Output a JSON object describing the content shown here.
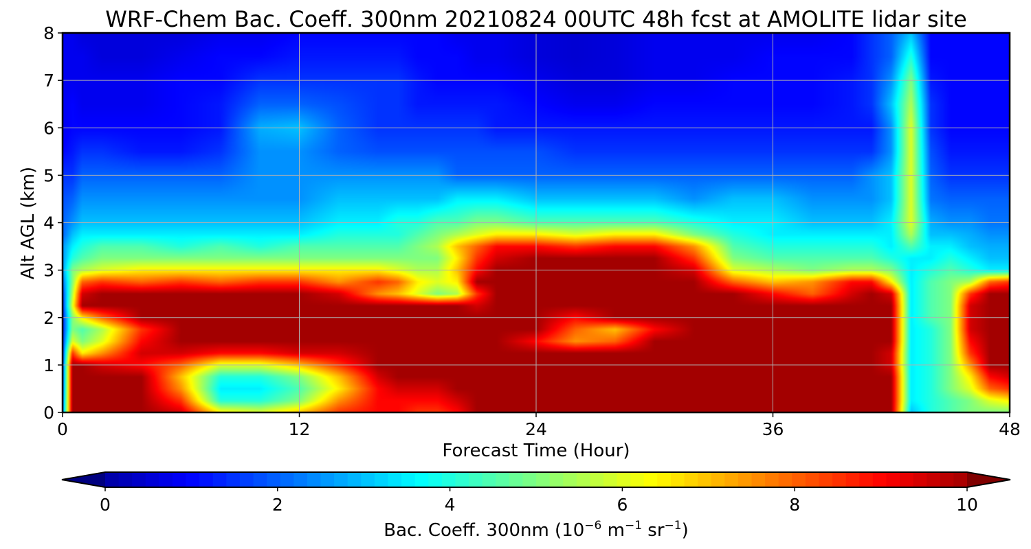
{
  "chart_data": {
    "type": "heatmap",
    "title": "WRF-Chem Bac. Coeff. 300nm  20210824 00UTC 48h fcst at AMOLITE lidar site",
    "xlabel": "Forecast Time (Hour)",
    "ylabel": "Alt AGL (km)",
    "xlim": [
      0,
      48
    ],
    "ylim": [
      0,
      8
    ],
    "x_ticks": [
      "0",
      "12",
      "24",
      "36",
      "48"
    ],
    "y_ticks": [
      "0",
      "1",
      "2",
      "3",
      "4",
      "5",
      "6",
      "7",
      "8"
    ],
    "grid": true,
    "colormap": "jet",
    "colorbar": {
      "orientation": "horizontal",
      "label_prefix": "Bac. Coeff. 300nm  (10",
      "label_exp1": "−6",
      "label_mid": " m",
      "label_exp2": "−1",
      "label_mid2": " sr",
      "label_exp3": "−1",
      "label_suffix": ")",
      "ticks": [
        "0",
        "2",
        "4",
        "6",
        "8",
        "10"
      ],
      "range": [
        0,
        10
      ],
      "extend": "both"
    },
    "x": [
      0,
      0.5,
      1,
      2,
      4,
      6,
      8,
      10,
      12,
      14,
      16,
      17,
      18,
      19,
      20,
      21,
      22,
      24,
      26,
      28,
      30,
      32,
      34,
      36,
      38,
      40,
      41,
      42,
      43,
      44,
      45,
      46,
      47,
      48
    ],
    "y": [
      0,
      0.25,
      0.5,
      0.75,
      1,
      1.25,
      1.5,
      1.75,
      2,
      2.25,
      2.5,
      2.75,
      3,
      3.25,
      3.5,
      3.75,
      4,
      4.5,
      5,
      5.5,
      6,
      6.5,
      7,
      7.5,
      8
    ],
    "values": [
      [
        2.0,
        10,
        10,
        10,
        10,
        9.5,
        6.5,
        6.0,
        7.0,
        8.5,
        9.0,
        9.0,
        8.5,
        8.5,
        9.0,
        10,
        10,
        10,
        10,
        10,
        10,
        10,
        10,
        10,
        10,
        10,
        10,
        10,
        3.0,
        4.0,
        4.5,
        5.0,
        5.0,
        5.0
      ],
      [
        1.8,
        10,
        10,
        10,
        10,
        8.5,
        4.0,
        4.0,
        5.0,
        7.5,
        9.0,
        9.0,
        9.0,
        9.0,
        9.5,
        10,
        10,
        10,
        10,
        10,
        10,
        10,
        10,
        10,
        10,
        10,
        10,
        10,
        3.5,
        4.0,
        4.5,
        5.0,
        6.0,
        6.5
      ],
      [
        1.6,
        10,
        10,
        10,
        10,
        7.5,
        3.5,
        3.5,
        4.5,
        6.5,
        9.0,
        9.5,
        9.5,
        9.5,
        10,
        10,
        10,
        10,
        10,
        10,
        10,
        10,
        10,
        10,
        10,
        10,
        10,
        10,
        3.5,
        4.0,
        5.0,
        6.0,
        8.0,
        8.5
      ],
      [
        1.5,
        10,
        10,
        10,
        10,
        7.0,
        4.0,
        4.0,
        5.0,
        7.0,
        9.5,
        10,
        10,
        10,
        10,
        10,
        10,
        10,
        10,
        10,
        10,
        10,
        10,
        10,
        10,
        10,
        10,
        10,
        3.5,
        4.0,
        5.0,
        6.5,
        9.0,
        9.5
      ],
      [
        1.4,
        10,
        10,
        9.5,
        9.0,
        8.0,
        6.0,
        6.0,
        7.0,
        8.5,
        10,
        10,
        10,
        10,
        10,
        10,
        10,
        10,
        10,
        10,
        10,
        10,
        10,
        10,
        10,
        10,
        10,
        9.5,
        3.5,
        4.0,
        5.0,
        7.5,
        10,
        10
      ],
      [
        1.3,
        8.5,
        6.5,
        7.5,
        9.5,
        9.5,
        9.0,
        9.0,
        9.5,
        9.5,
        10,
        10,
        10,
        10,
        10,
        10,
        10,
        10,
        10,
        10,
        10,
        10,
        10,
        10,
        10,
        10,
        10,
        9.5,
        3.5,
        4.0,
        5.0,
        8.5,
        10,
        10
      ],
      [
        1.3,
        6.0,
        5.0,
        6.0,
        9.0,
        10,
        10,
        10,
        10,
        10,
        10,
        10,
        10,
        10,
        10,
        10,
        10,
        9.0,
        7.5,
        8.0,
        10,
        10,
        10,
        10,
        10,
        10,
        10,
        10,
        3.5,
        4.0,
        5.0,
        9.0,
        10,
        10
      ],
      [
        1.2,
        5.0,
        4.5,
        5.5,
        8.5,
        10,
        10,
        10,
        10,
        10,
        10,
        10,
        10,
        10,
        10,
        10,
        10,
        10,
        8.0,
        7.0,
        9.0,
        10,
        10,
        10,
        10,
        10,
        10,
        10,
        3.5,
        4.0,
        5.0,
        9.5,
        10,
        10
      ],
      [
        1.2,
        5.0,
        6.5,
        8.0,
        10,
        10,
        10,
        10,
        10,
        10,
        10,
        10,
        10,
        10,
        10,
        10,
        10,
        10,
        9.0,
        10,
        10,
        10,
        10,
        10,
        10,
        10,
        10,
        10,
        3.5,
        4.5,
        5.0,
        9.5,
        10,
        10
      ],
      [
        1.3,
        6.0,
        10,
        10,
        10,
        10,
        10,
        10,
        10,
        10,
        10,
        10,
        10,
        10,
        10,
        9.5,
        10,
        10,
        10,
        10,
        10,
        10,
        10,
        10,
        10,
        10,
        10,
        10,
        3.5,
        4.5,
        5.0,
        9.5,
        10,
        10
      ],
      [
        1.5,
        5.5,
        9.5,
        10,
        10,
        10,
        10,
        10,
        10,
        9.5,
        7.5,
        7.0,
        6.0,
        5.0,
        5.5,
        8.5,
        10,
        10,
        10,
        10,
        10,
        10,
        10,
        9.0,
        8.0,
        9.5,
        10,
        9.5,
        3.5,
        4.5,
        5.0,
        8.5,
        10,
        10
      ],
      [
        2.0,
        5.0,
        8.0,
        8.5,
        8.0,
        8.5,
        8.0,
        8.5,
        8.5,
        7.5,
        8.5,
        8.0,
        6.5,
        6.0,
        6.5,
        10,
        10,
        10,
        10,
        10,
        10,
        10,
        8.0,
        7.0,
        7.5,
        9.0,
        9.0,
        6.5,
        3.5,
        4.5,
        5.0,
        5.5,
        8.0,
        8.5
      ],
      [
        2.5,
        5.0,
        5.5,
        6.0,
        6.5,
        6.5,
        6.5,
        6.5,
        6.5,
        6.5,
        6.5,
        6.0,
        5.5,
        5.5,
        7.0,
        9.0,
        10,
        10,
        10,
        10,
        10,
        9.5,
        6.0,
        5.5,
        5.0,
        5.5,
        5.5,
        5.0,
        3.5,
        4.0,
        4.5,
        4.0,
        3.5,
        3.5
      ],
      [
        2.5,
        4.0,
        4.5,
        5.0,
        5.0,
        5.0,
        5.0,
        5.0,
        5.0,
        5.0,
        5.0,
        5.0,
        5.0,
        5.0,
        6.5,
        8.5,
        9.5,
        10,
        10,
        10,
        10,
        8.5,
        5.0,
        4.5,
        4.5,
        4.5,
        4.5,
        4.0,
        3.5,
        3.5,
        4.0,
        3.5,
        3.0,
        3.0
      ],
      [
        2.5,
        3.5,
        4.0,
        4.5,
        4.5,
        4.0,
        4.5,
        4.0,
        4.5,
        4.5,
        4.5,
        4.5,
        5.0,
        5.5,
        7.0,
        8.0,
        9.0,
        9.0,
        8.5,
        9.0,
        9.0,
        7.5,
        4.5,
        4.0,
        4.0,
        4.0,
        4.0,
        3.5,
        4.5,
        3.5,
        3.5,
        3.0,
        2.8,
        2.8
      ],
      [
        2.0,
        3.0,
        3.5,
        3.5,
        3.5,
        3.5,
        3.5,
        3.5,
        3.5,
        4.0,
        4.0,
        4.0,
        4.5,
        5.0,
        5.5,
        6.0,
        6.5,
        6.5,
        6.0,
        6.5,
        6.5,
        5.0,
        4.0,
        3.5,
        3.5,
        3.5,
        3.5,
        3.5,
        5.5,
        3.0,
        3.0,
        2.8,
        2.5,
        2.5
      ],
      [
        2.0,
        2.5,
        3.0,
        3.0,
        3.0,
        3.0,
        3.0,
        3.0,
        3.0,
        3.5,
        3.5,
        4.0,
        4.0,
        4.5,
        4.5,
        5.0,
        5.0,
        4.5,
        4.5,
        4.5,
        4.5,
        4.0,
        3.5,
        3.5,
        3.0,
        3.0,
        3.0,
        3.5,
        6.0,
        2.8,
        2.5,
        2.5,
        2.2,
        2.2
      ],
      [
        1.8,
        2.0,
        2.5,
        2.5,
        2.5,
        2.5,
        2.5,
        2.5,
        2.5,
        3.0,
        3.0,
        3.0,
        3.0,
        3.0,
        3.5,
        3.5,
        3.5,
        3.0,
        3.0,
        3.0,
        3.0,
        2.5,
        3.0,
        3.0,
        2.5,
        2.5,
        2.5,
        3.0,
        6.0,
        2.2,
        2.0,
        2.0,
        2.0,
        2.0
      ],
      [
        1.5,
        1.5,
        2.0,
        2.0,
        2.0,
        2.0,
        2.0,
        2.5,
        2.5,
        2.5,
        2.5,
        2.5,
        2.5,
        2.5,
        2.0,
        2.0,
        2.0,
        2.0,
        2.0,
        2.0,
        2.0,
        2.0,
        2.0,
        2.0,
        2.0,
        2.0,
        2.5,
        3.0,
        6.0,
        2.0,
        1.5,
        1.5,
        1.5,
        1.5
      ],
      [
        1.0,
        1.2,
        1.5,
        1.5,
        1.2,
        1.2,
        1.5,
        2.5,
        2.5,
        2.0,
        1.8,
        1.8,
        1.8,
        1.8,
        1.8,
        1.8,
        1.8,
        1.8,
        1.5,
        1.5,
        1.5,
        1.5,
        1.5,
        1.5,
        1.5,
        1.5,
        1.5,
        2.5,
        6.0,
        1.8,
        1.2,
        1.2,
        1.2,
        1.2
      ],
      [
        0.8,
        1.0,
        1.0,
        1.0,
        1.0,
        1.0,
        1.2,
        2.8,
        3.0,
        2.0,
        1.5,
        1.5,
        1.5,
        1.5,
        1.5,
        1.5,
        1.2,
        1.2,
        1.2,
        1.2,
        1.2,
        1.2,
        1.2,
        1.2,
        1.2,
        1.2,
        1.2,
        2.5,
        6.0,
        1.5,
        1.0,
        1.0,
        1.0,
        1.0
      ],
      [
        0.8,
        1.0,
        0.8,
        0.8,
        0.8,
        1.0,
        1.2,
        2.0,
        2.0,
        1.8,
        1.5,
        1.5,
        1.2,
        1.2,
        1.2,
        1.2,
        1.2,
        1.0,
        0.8,
        0.8,
        1.0,
        1.0,
        1.0,
        1.0,
        1.0,
        1.2,
        1.5,
        3.0,
        5.5,
        1.5,
        1.0,
        1.0,
        1.0,
        1.0
      ],
      [
        0.8,
        0.8,
        0.8,
        0.8,
        0.8,
        1.0,
        1.0,
        1.5,
        1.5,
        1.5,
        1.5,
        1.5,
        1.2,
        1.0,
        1.0,
        1.0,
        1.0,
        0.8,
        0.6,
        0.6,
        0.8,
        0.8,
        1.0,
        1.0,
        1.0,
        1.2,
        1.5,
        2.5,
        5.0,
        1.2,
        1.0,
        1.0,
        1.0,
        1.0
      ],
      [
        0.8,
        0.8,
        0.8,
        0.6,
        0.6,
        0.8,
        1.0,
        1.0,
        1.2,
        1.2,
        1.2,
        1.2,
        1.0,
        1.0,
        1.0,
        0.8,
        0.8,
        0.6,
        0.5,
        0.6,
        0.8,
        0.8,
        0.8,
        1.0,
        1.0,
        1.0,
        1.5,
        2.0,
        4.0,
        1.0,
        1.0,
        1.0,
        1.0,
        1.0
      ],
      [
        0.8,
        0.8,
        0.6,
        0.6,
        0.6,
        0.6,
        0.8,
        0.8,
        1.0,
        1.0,
        1.0,
        1.0,
        1.0,
        1.0,
        0.8,
        0.8,
        0.8,
        0.6,
        0.5,
        0.6,
        0.8,
        0.8,
        0.8,
        0.8,
        0.8,
        1.0,
        1.5,
        2.0,
        3.0,
        1.0,
        1.0,
        1.0,
        1.0,
        1.0
      ]
    ]
  }
}
